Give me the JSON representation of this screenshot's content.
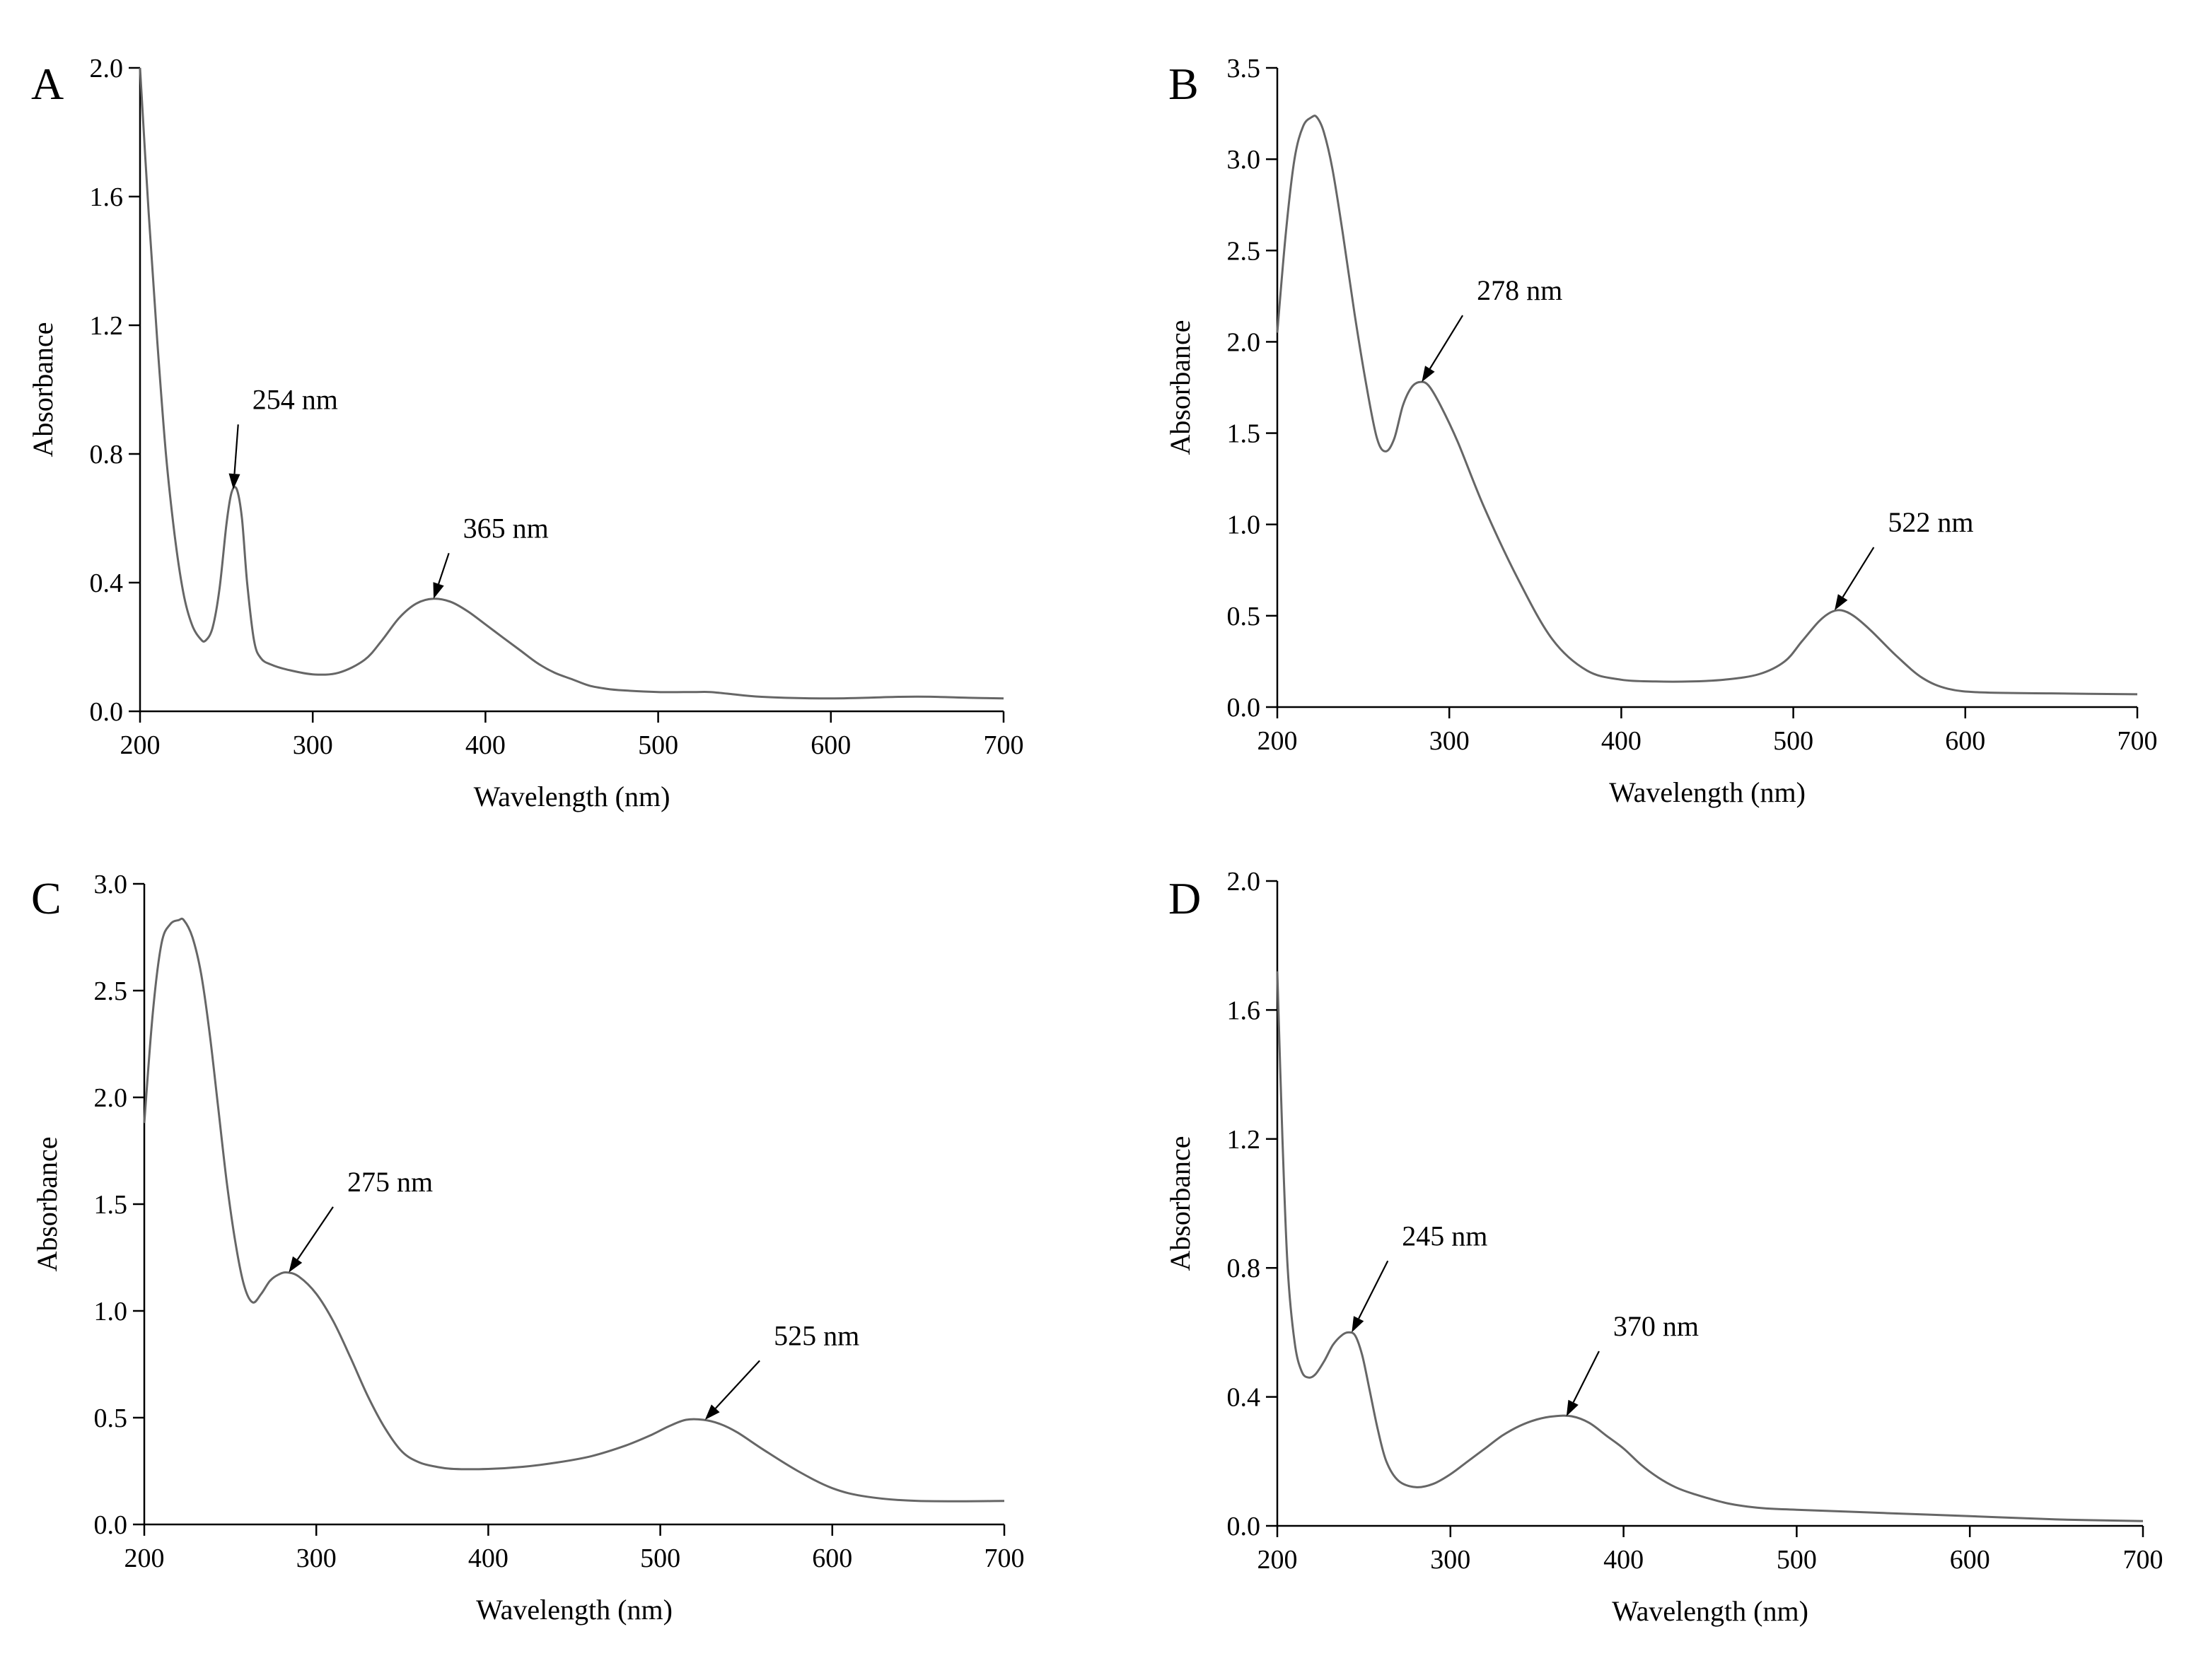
{
  "chart_data": [
    {
      "type": "line",
      "panel": "A",
      "xlabel": "Wavelength (nm)",
      "ylabel": "Absorbance",
      "xlim": [
        200,
        700
      ],
      "ylim": [
        0.0,
        2.0
      ],
      "xticks": [
        200,
        300,
        400,
        500,
        600,
        700
      ],
      "yticks": [
        0.0,
        0.4,
        0.8,
        1.2,
        1.6,
        2.0
      ],
      "ytick_labels": [
        "0.0",
        "0.4",
        "0.8",
        "1.2",
        "1.6",
        "2.0"
      ],
      "series": [
        {
          "name": "A",
          "x": [
            200,
            205,
            210,
            215,
            220,
            225,
            230,
            235,
            238,
            242,
            246,
            250,
            253,
            256,
            259,
            262,
            266,
            270,
            276,
            285,
            300,
            315,
            330,
            340,
            350,
            360,
            370,
            380,
            390,
            400,
            410,
            420,
            430,
            440,
            450,
            460,
            470,
            480,
            500,
            520,
            530,
            540,
            560,
            600,
            640,
            660,
            680,
            700
          ],
          "y": [
            2.0,
            1.55,
            1.15,
            0.8,
            0.55,
            0.37,
            0.27,
            0.225,
            0.22,
            0.26,
            0.38,
            0.58,
            0.68,
            0.69,
            0.6,
            0.4,
            0.22,
            0.165,
            0.145,
            0.13,
            0.115,
            0.12,
            0.16,
            0.22,
            0.29,
            0.335,
            0.35,
            0.34,
            0.31,
            0.27,
            0.23,
            0.19,
            0.15,
            0.12,
            0.1,
            0.08,
            0.07,
            0.065,
            0.06,
            0.06,
            0.06,
            0.055,
            0.045,
            0.04,
            0.045,
            0.045,
            0.042,
            0.04
          ]
        }
      ],
      "annotations": [
        {
          "text": "254 nm",
          "x": 254,
          "y": 0.69,
          "tx": 265,
          "ty": 0.94
        },
        {
          "text": "365 nm",
          "x": 370,
          "y": 0.35,
          "tx": 387,
          "ty": 0.54
        }
      ]
    },
    {
      "type": "line",
      "panel": "B",
      "xlabel": "Wavelength (nm)",
      "ylabel": "Absorbance",
      "xlim": [
        200,
        700
      ],
      "ylim": [
        0.0,
        3.5
      ],
      "xticks": [
        200,
        300,
        400,
        500,
        600,
        700
      ],
      "yticks": [
        0.0,
        0.5,
        1.0,
        1.5,
        2.0,
        2.5,
        3.0,
        3.5
      ],
      "ytick_labels": [
        "0.0",
        "0.5",
        "1.0",
        "1.5",
        "2.0",
        "2.5",
        "3.0",
        "3.5"
      ],
      "series": [
        {
          "name": "B",
          "x": [
            200,
            205,
            210,
            215,
            220,
            223,
            227,
            232,
            238,
            245,
            252,
            258,
            263,
            268,
            273,
            278,
            283,
            288,
            295,
            305,
            320,
            340,
            360,
            380,
            400,
            420,
            440,
            460,
            480,
            495,
            505,
            515,
            522,
            528,
            535,
            545,
            560,
            575,
            590,
            610,
            650,
            700
          ],
          "y": [
            2.05,
            2.6,
            3.0,
            3.18,
            3.23,
            3.23,
            3.15,
            2.95,
            2.6,
            2.15,
            1.75,
            1.47,
            1.4,
            1.47,
            1.65,
            1.75,
            1.78,
            1.76,
            1.65,
            1.45,
            1.1,
            0.7,
            0.37,
            0.2,
            0.15,
            0.14,
            0.14,
            0.15,
            0.18,
            0.25,
            0.36,
            0.47,
            0.52,
            0.53,
            0.5,
            0.42,
            0.28,
            0.16,
            0.1,
            0.08,
            0.075,
            0.07
          ]
        }
      ],
      "annotations": [
        {
          "text": "278 nm",
          "x": 284,
          "y": 1.78,
          "tx": 316,
          "ty": 2.23
        },
        {
          "text": "522 nm",
          "x": 524,
          "y": 0.53,
          "tx": 555,
          "ty": 0.96
        }
      ]
    },
    {
      "type": "line",
      "panel": "C",
      "xlabel": "Wavelength (nm)",
      "ylabel": "Absorbance",
      "xlim": [
        200,
        700
      ],
      "ylim": [
        0.0,
        3.0
      ],
      "xticks": [
        200,
        300,
        400,
        500,
        600,
        700
      ],
      "yticks": [
        0.0,
        0.5,
        1.0,
        1.5,
        2.0,
        2.5,
        3.0
      ],
      "ytick_labels": [
        "0.0",
        "0.5",
        "1.0",
        "1.5",
        "2.0",
        "2.5",
        "3.0"
      ],
      "series": [
        {
          "name": "C",
          "x": [
            200,
            205,
            210,
            215,
            220,
            223,
            228,
            233,
            238,
            243,
            248,
            253,
            258,
            263,
            268,
            273,
            278,
            283,
            290,
            300,
            310,
            320,
            330,
            340,
            350,
            360,
            370,
            380,
            400,
            420,
            440,
            460,
            480,
            495,
            505,
            515,
            525,
            535,
            545,
            560,
            580,
            600,
            620,
            650,
            700
          ],
          "y": [
            1.88,
            2.4,
            2.72,
            2.81,
            2.83,
            2.83,
            2.75,
            2.58,
            2.3,
            1.95,
            1.6,
            1.32,
            1.12,
            1.04,
            1.08,
            1.14,
            1.17,
            1.18,
            1.16,
            1.08,
            0.95,
            0.78,
            0.6,
            0.45,
            0.34,
            0.29,
            0.27,
            0.26,
            0.26,
            0.27,
            0.29,
            0.32,
            0.37,
            0.42,
            0.46,
            0.49,
            0.49,
            0.47,
            0.43,
            0.35,
            0.25,
            0.17,
            0.13,
            0.11,
            0.11
          ]
        }
      ],
      "annotations": [
        {
          "text": "275 nm",
          "x": 284,
          "y": 1.18,
          "tx": 318,
          "ty": 1.56
        },
        {
          "text": "525 nm",
          "x": 526,
          "y": 0.49,
          "tx": 566,
          "ty": 0.84
        }
      ]
    },
    {
      "type": "line",
      "panel": "D",
      "xlabel": "Wavelength (nm)",
      "ylabel": "Absorbance",
      "xlim": [
        200,
        700
      ],
      "ylim": [
        0.0,
        2.0
      ],
      "xticks": [
        200,
        300,
        400,
        500,
        600,
        700
      ],
      "yticks": [
        0.0,
        0.4,
        0.8,
        1.2,
        1.6,
        2.0
      ],
      "ytick_labels": [
        "0.0",
        "0.4",
        "0.8",
        "1.2",
        "1.6",
        "2.0"
      ],
      "series": [
        {
          "name": "D",
          "x": [
            200,
            203,
            206,
            210,
            214,
            218,
            222,
            227,
            232,
            237,
            241,
            245,
            249,
            253,
            258,
            263,
            270,
            280,
            290,
            300,
            310,
            320,
            330,
            340,
            350,
            360,
            370,
            380,
            390,
            400,
            410,
            420,
            430,
            440,
            460,
            480,
            500,
            550,
            600,
            650,
            700
          ],
          "y": [
            1.72,
            1.2,
            0.8,
            0.57,
            0.48,
            0.46,
            0.47,
            0.51,
            0.56,
            0.59,
            0.6,
            0.59,
            0.53,
            0.43,
            0.3,
            0.2,
            0.14,
            0.12,
            0.13,
            0.16,
            0.2,
            0.24,
            0.28,
            0.31,
            0.33,
            0.34,
            0.34,
            0.32,
            0.28,
            0.24,
            0.19,
            0.15,
            0.12,
            0.1,
            0.07,
            0.055,
            0.05,
            0.04,
            0.03,
            0.02,
            0.015
          ]
        }
      ],
      "annotations": [
        {
          "text": "245 nm",
          "x": 243,
          "y": 0.6,
          "tx": 272,
          "ty": 0.87
        },
        {
          "text": "370 nm",
          "x": 367,
          "y": 0.34,
          "tx": 394,
          "ty": 0.59
        }
      ]
    }
  ]
}
